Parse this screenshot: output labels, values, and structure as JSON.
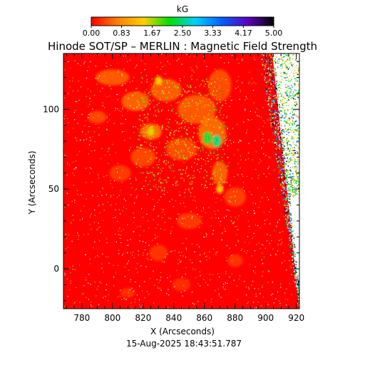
{
  "chart_data": {
    "type": "heatmap",
    "title": "Hinode SOT/SP – MERLIN : Magnetic Field Strength",
    "xlabel": "X (Arcseconds)",
    "ylabel": "Y (Arcseconds)",
    "timestamp": "15-Aug-2025 18:43:51.787",
    "xlim": [
      768,
      922
    ],
    "ylim": [
      -25,
      135
    ],
    "x_ticks": [
      "780",
      "800",
      "820",
      "840",
      "860",
      "880",
      "900",
      "920"
    ],
    "x_tick_values": [
      780,
      800,
      820,
      840,
      860,
      880,
      900,
      920
    ],
    "y_ticks": [
      "0",
      "50",
      "100"
    ],
    "y_tick_values": [
      0,
      50,
      100
    ],
    "colorbar": {
      "label": "kG",
      "range": [
        0,
        5
      ],
      "ticks": [
        "0.00",
        "0.83",
        "1.67",
        "2.50",
        "3.33",
        "4.17",
        "5.00"
      ],
      "tick_values": [
        0.0,
        0.83,
        1.67,
        2.5,
        3.33,
        4.17,
        5.0
      ],
      "colormap": [
        "#ff0000",
        "#ff8000",
        "#ffd000",
        "#00e000",
        "#00d0ff",
        "#0060ff",
        "#6000c0",
        "#000000"
      ]
    },
    "background_level": 0.0,
    "features": [
      {
        "name": "strong-core-left",
        "x": 862,
        "y": 82,
        "value": 2.3
      },
      {
        "name": "strong-core-right",
        "x": 868,
        "y": 80,
        "value": 2.5
      },
      {
        "name": "plage-left",
        "x": 825,
        "y": 86,
        "value": 1.5
      },
      {
        "name": "plage-upper",
        "x": 830,
        "y": 118,
        "value": 1.4
      },
      {
        "name": "plage-lower",
        "x": 870,
        "y": 50,
        "value": 1.3
      }
    ],
    "grid": false
  },
  "colors": {
    "field_low": "#ff0000",
    "field_high": "#00e000",
    "frame": "#000000",
    "background": "#ffffff"
  }
}
